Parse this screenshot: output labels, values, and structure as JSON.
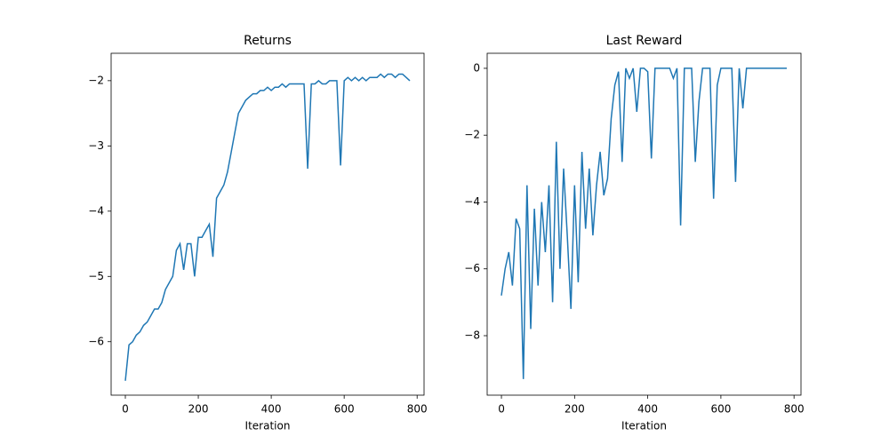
{
  "chart_data": [
    {
      "type": "line",
      "title": "Returns",
      "xlabel": "Iteration",
      "x": [
        0,
        10,
        20,
        30,
        40,
        50,
        60,
        70,
        80,
        90,
        100,
        110,
        120,
        130,
        140,
        150,
        160,
        170,
        180,
        190,
        200,
        210,
        220,
        230,
        240,
        250,
        260,
        270,
        280,
        290,
        300,
        310,
        320,
        330,
        340,
        350,
        360,
        370,
        380,
        390,
        400,
        410,
        420,
        430,
        440,
        450,
        460,
        470,
        480,
        490,
        500,
        510,
        520,
        530,
        540,
        550,
        560,
        570,
        580,
        590,
        600,
        610,
        620,
        630,
        640,
        650,
        660,
        670,
        680,
        690,
        700,
        710,
        720,
        730,
        740,
        750,
        760,
        770,
        780
      ],
      "series": [
        {
          "name": "Returns",
          "color": "#1f77b4",
          "values": [
            -6.6,
            -6.05,
            -6.0,
            -5.9,
            -5.85,
            -5.75,
            -5.7,
            -5.6,
            -5.5,
            -5.5,
            -5.4,
            -5.2,
            -5.1,
            -5.0,
            -4.6,
            -4.5,
            -4.9,
            -4.5,
            -4.5,
            -5.0,
            -4.4,
            -4.4,
            -4.3,
            -4.2,
            -4.7,
            -3.8,
            -3.7,
            -3.6,
            -3.4,
            -3.1,
            -2.8,
            -2.5,
            -2.4,
            -2.3,
            -2.25,
            -2.2,
            -2.2,
            -2.15,
            -2.15,
            -2.1,
            -2.15,
            -2.1,
            -2.1,
            -2.05,
            -2.1,
            -2.05,
            -2.05,
            -2.05,
            -2.05,
            -2.05,
            -3.35,
            -2.05,
            -2.05,
            -2.0,
            -2.05,
            -2.05,
            -2.0,
            -2.0,
            -2.0,
            -3.3,
            -2.0,
            -1.95,
            -2.0,
            -1.95,
            -2.0,
            -1.95,
            -2.0,
            -1.95,
            -1.95,
            -1.95,
            -1.9,
            -1.95,
            -1.9,
            -1.9,
            -1.95,
            -1.9,
            -1.9,
            -1.95,
            -2.0
          ]
        }
      ],
      "xlim": [
        -39,
        819
      ],
      "xticks": [
        0,
        200,
        400,
        600,
        800
      ],
      "ylim": [
        -6.82,
        -1.58
      ],
      "yticks": [
        {
          "value": -6,
          "label": "−6"
        },
        {
          "value": -5,
          "label": "−5"
        },
        {
          "value": -4,
          "label": "−4"
        },
        {
          "value": -3,
          "label": "−3"
        },
        {
          "value": -2,
          "label": "−2"
        }
      ]
    },
    {
      "type": "line",
      "title": "Last Reward",
      "xlabel": "Iteration",
      "x": [
        0,
        10,
        20,
        30,
        40,
        50,
        60,
        70,
        80,
        90,
        100,
        110,
        120,
        130,
        140,
        150,
        160,
        170,
        180,
        190,
        200,
        210,
        220,
        230,
        240,
        250,
        260,
        270,
        280,
        290,
        300,
        310,
        320,
        330,
        340,
        350,
        360,
        370,
        380,
        390,
        400,
        410,
        420,
        430,
        440,
        450,
        460,
        470,
        480,
        490,
        500,
        510,
        520,
        530,
        540,
        550,
        560,
        570,
        580,
        590,
        600,
        610,
        620,
        630,
        640,
        650,
        660,
        670,
        680,
        690,
        700,
        710,
        720,
        730,
        740,
        750,
        760,
        770,
        780
      ],
      "series": [
        {
          "name": "Last Reward",
          "color": "#1f77b4",
          "values": [
            -6.8,
            -6.0,
            -5.5,
            -6.5,
            -4.5,
            -4.8,
            -9.3,
            -3.5,
            -7.8,
            -4.2,
            -6.5,
            -4.0,
            -5.5,
            -3.5,
            -7.0,
            -2.2,
            -6.0,
            -3.0,
            -5.0,
            -7.2,
            -3.5,
            -6.4,
            -2.5,
            -4.8,
            -3.0,
            -5.0,
            -3.5,
            -2.5,
            -3.8,
            -3.3,
            -1.5,
            -0.5,
            -0.1,
            -2.8,
            0,
            -0.3,
            0,
            -1.3,
            0,
            0,
            -0.1,
            -2.7,
            0,
            0,
            0,
            0,
            0,
            -0.3,
            0,
            -4.7,
            0,
            0,
            0,
            -2.8,
            -1.0,
            0,
            0,
            0,
            -3.9,
            -0.5,
            0,
            0,
            0,
            0,
            -3.4,
            0,
            -1.2,
            0,
            0,
            0,
            0,
            0,
            0,
            0,
            0,
            0,
            0,
            0,
            0
          ]
        }
      ],
      "xlim": [
        -39,
        819
      ],
      "xticks": [
        0,
        200,
        400,
        600,
        800
      ],
      "ylim": [
        -9.78,
        0.45
      ],
      "yticks": [
        {
          "value": -8,
          "label": "−8"
        },
        {
          "value": -6,
          "label": "−6"
        },
        {
          "value": -4,
          "label": "−4"
        },
        {
          "value": -2,
          "label": "−2"
        },
        0
      ]
    }
  ]
}
